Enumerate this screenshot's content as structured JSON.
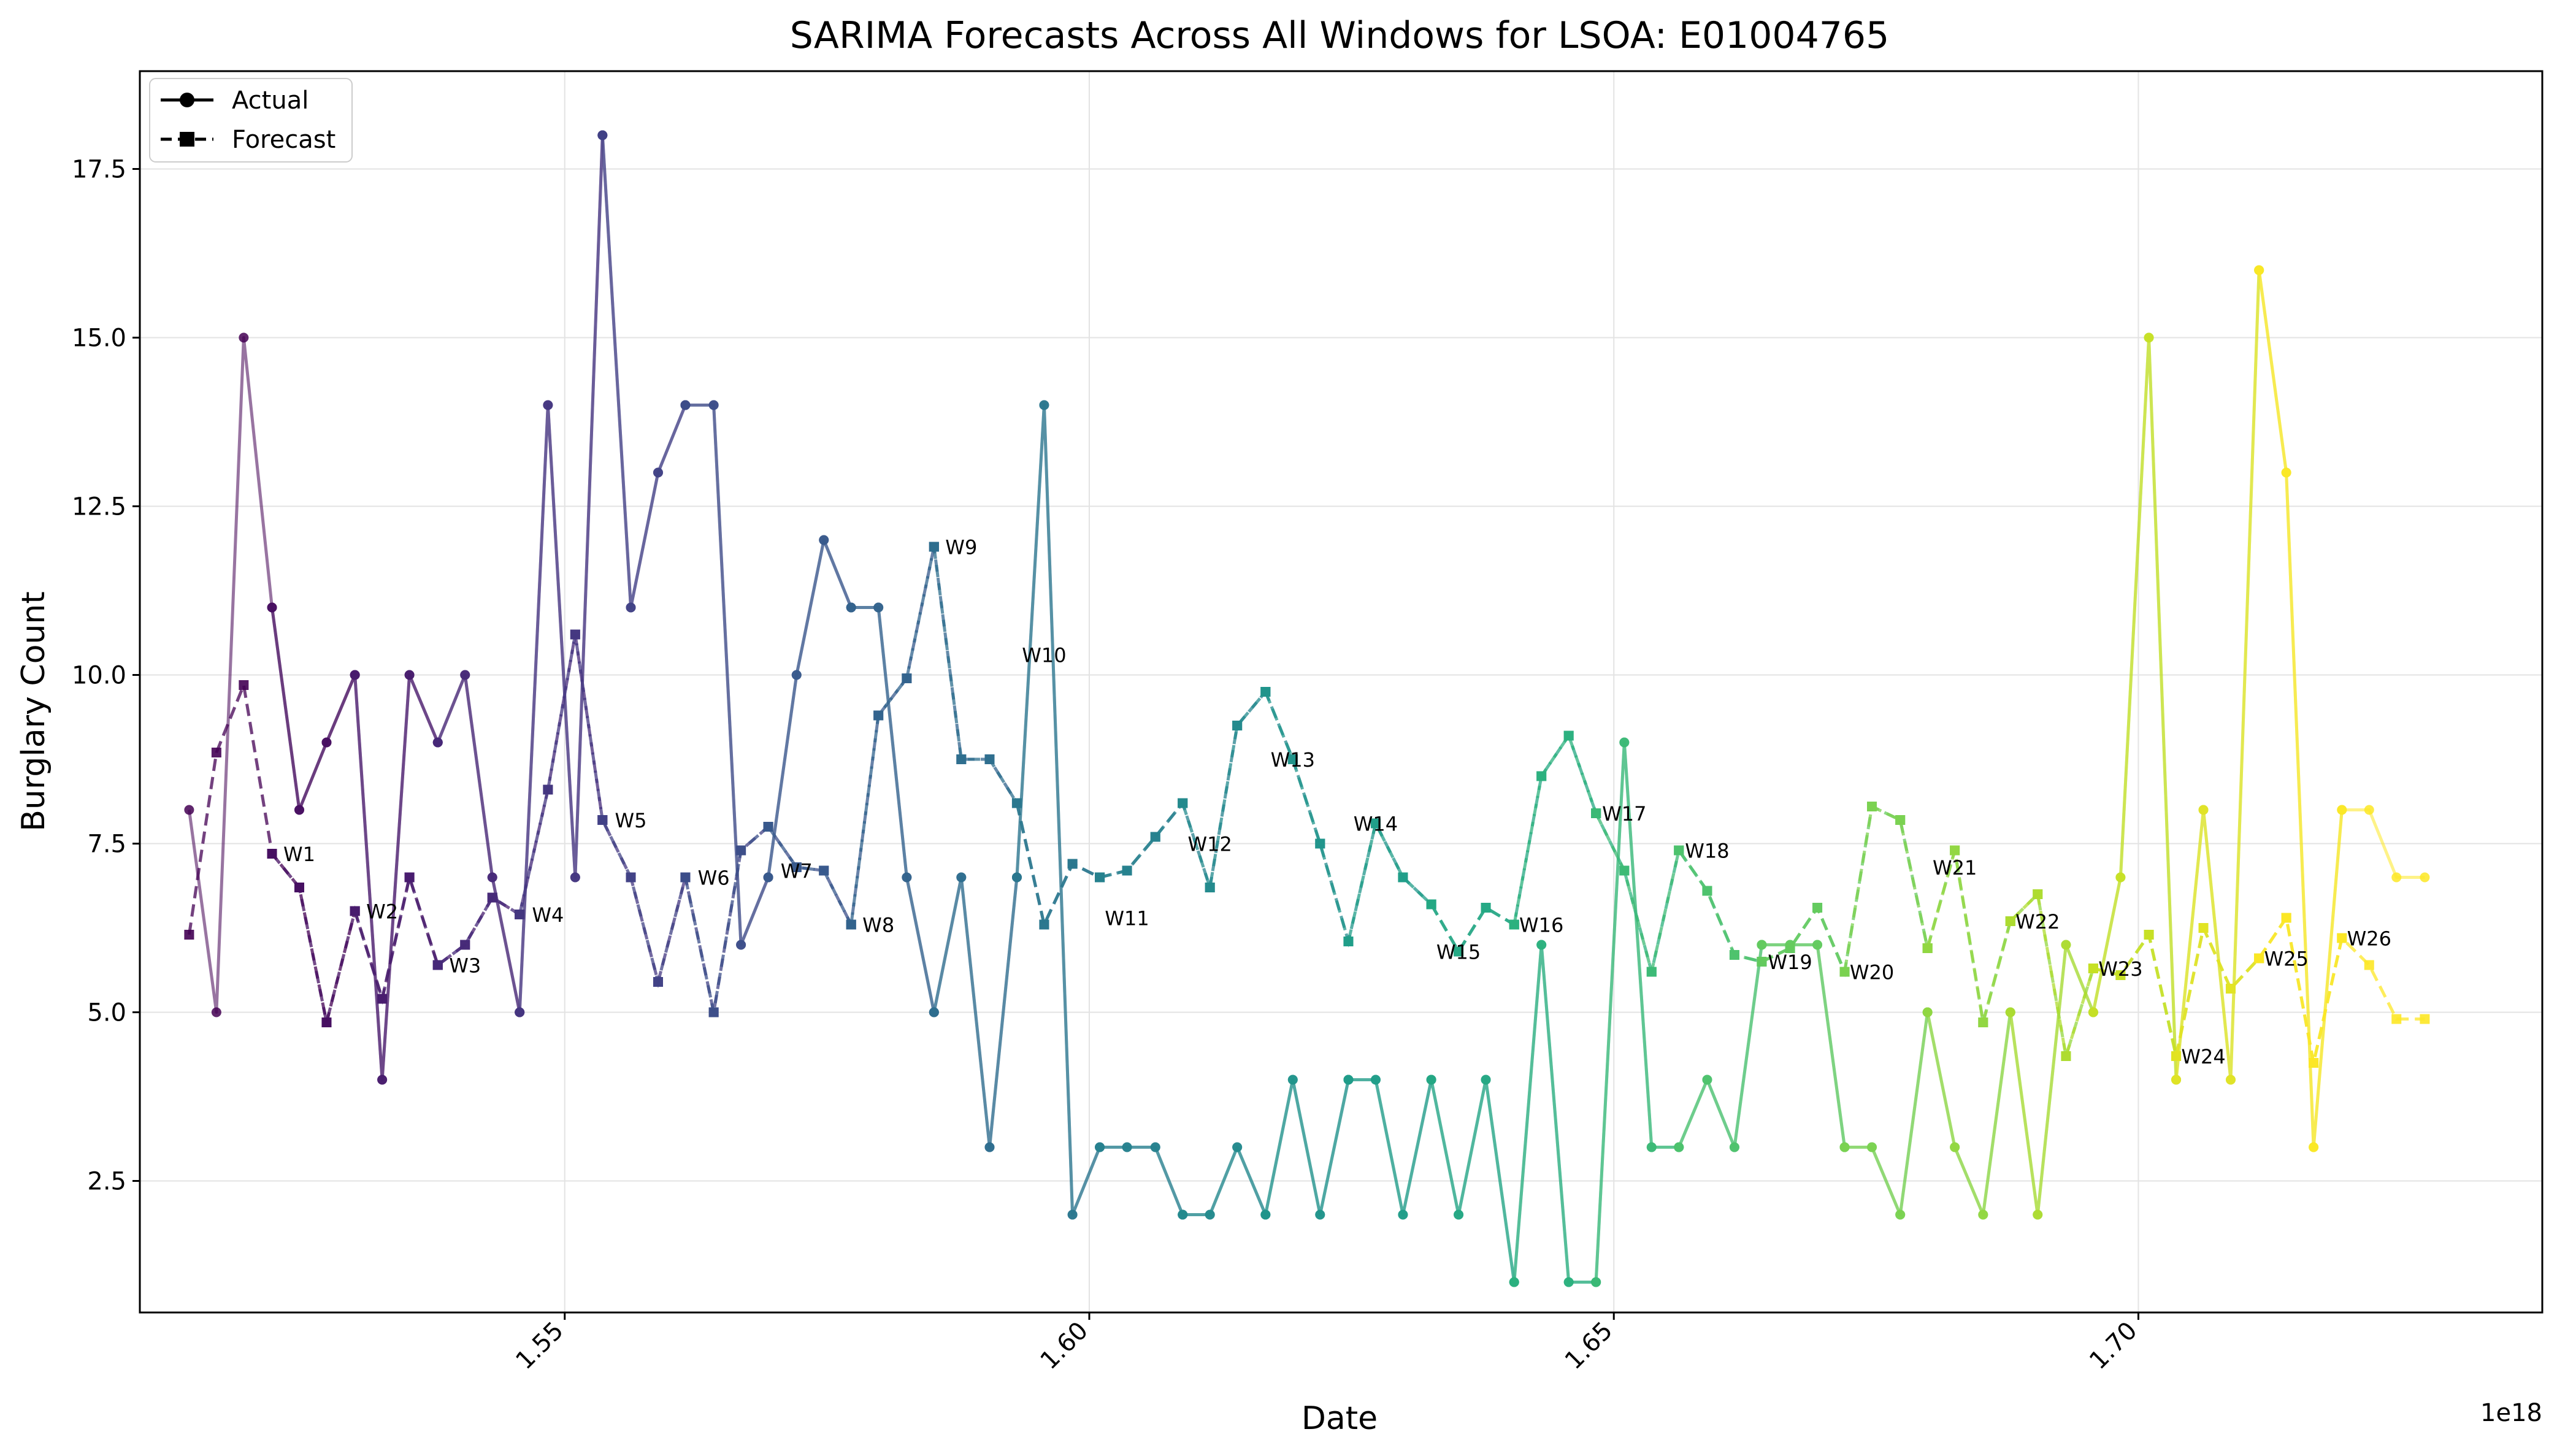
{
  "chart_data": {
    "type": "line",
    "title": "SARIMA Forecasts Across All Windows for LSOA: E01004765",
    "xlabel": "Date",
    "ylabel": "Burglary Count",
    "x_offset_label": "1e18",
    "xlim": [
      1.5095,
      1.7385
    ],
    "ylim": [
      0.55,
      18.95
    ],
    "x_ticks": [
      1.55,
      1.6,
      1.65,
      1.7
    ],
    "x_tick_labels": [
      "1.55",
      "1.60",
      "1.65",
      "1.70"
    ],
    "y_ticks": [
      2.5,
      5.0,
      7.5,
      10.0,
      12.5,
      15.0,
      17.5
    ],
    "y_tick_labels": [
      "2.5",
      "5.0",
      "7.5",
      "10.0",
      "12.5",
      "15.0",
      "17.5"
    ],
    "grid": true,
    "legend": {
      "placement": "top-left",
      "entries": [
        {
          "label": "Actual",
          "style": "solid",
          "marker": "circle"
        },
        {
          "label": "Forecast",
          "style": "dashed",
          "marker": "square"
        }
      ]
    },
    "palette": [
      "#440154",
      "#482173",
      "#433e85",
      "#38588c",
      "#2d708e",
      "#25858e",
      "#1e9b8a",
      "#2ab07f",
      "#52c569",
      "#86d549",
      "#c2df23",
      "#fde725"
    ],
    "actual": {
      "x": [
        1.5142,
        1.5168,
        1.5194,
        1.5221,
        1.5247,
        1.5273,
        1.53,
        1.5326,
        1.5352,
        1.5379,
        1.5405,
        1.5431,
        1.5457,
        1.5484,
        1.551,
        1.5536,
        1.5563,
        1.5589,
        1.5615,
        1.5642,
        1.5668,
        1.5694,
        1.5721,
        1.5747,
        1.5773,
        1.5799,
        1.5826,
        1.5852,
        1.5878,
        1.5905,
        1.5931,
        1.5957,
        1.5984,
        1.601,
        1.6036,
        1.6063,
        1.6089,
        1.6115,
        1.6141,
        1.6168,
        1.6194,
        1.622,
        1.6247,
        1.6273,
        1.6299,
        1.6326,
        1.6352,
        1.6378,
        1.6405,
        1.6431,
        1.6457,
        1.6483,
        1.651,
        1.6536,
        1.6562,
        1.6589,
        1.6615,
        1.6641,
        1.6668,
        1.6694,
        1.672,
        1.6746,
        1.6773,
        1.6799,
        1.6825,
        1.6852,
        1.6878,
        1.6904,
        1.6931,
        1.6957,
        1.6983,
        1.701,
        1.7036,
        1.7062,
        1.7088,
        1.7115,
        1.7141,
        1.7167,
        1.7194,
        1.722,
        1.7246,
        1.7273
      ],
      "y": [
        8,
        5,
        15,
        11,
        8,
        9,
        10,
        4,
        10,
        9,
        10,
        7,
        5,
        14,
        7,
        18,
        11,
        13,
        14,
        14,
        6,
        7,
        10,
        12,
        11,
        11,
        7,
        5,
        7,
        3,
        7,
        14,
        2,
        3,
        3,
        3,
        2,
        2,
        3,
        2,
        4,
        2,
        4,
        4,
        2,
        4,
        2,
        4,
        1,
        6,
        1,
        1,
        9,
        3,
        3,
        4,
        3,
        6,
        6,
        6,
        3,
        3,
        2,
        5,
        3,
        2,
        5,
        2,
        6,
        5,
        7,
        15,
        4,
        8,
        4,
        16,
        13,
        3,
        8,
        8,
        7,
        7
      ]
    },
    "forecast": {
      "x": [
        1.5142,
        1.5168,
        1.5194,
        1.5221,
        1.5247,
        1.5273,
        1.53,
        1.5326,
        1.5352,
        1.5379,
        1.5405,
        1.5431,
        1.5457,
        1.5484,
        1.551,
        1.5536,
        1.5563,
        1.5589,
        1.5615,
        1.5642,
        1.5668,
        1.5694,
        1.5721,
        1.5747,
        1.5773,
        1.5799,
        1.5826,
        1.5852,
        1.5878,
        1.5905,
        1.5931,
        1.5957,
        1.5984,
        1.601,
        1.6036,
        1.6063,
        1.6089,
        1.6115,
        1.6141,
        1.6168,
        1.6194,
        1.622,
        1.6247,
        1.6273,
        1.6299,
        1.6326,
        1.6352,
        1.6378,
        1.6405,
        1.6431,
        1.6457,
        1.6483,
        1.651,
        1.6536,
        1.6562,
        1.6589,
        1.6615,
        1.6641,
        1.6668,
        1.6694,
        1.672,
        1.6746,
        1.6773,
        1.6799,
        1.6825,
        1.6852,
        1.6878,
        1.6904,
        1.6931,
        1.6957,
        1.6983,
        1.701,
        1.7036,
        1.7062,
        1.7088,
        1.7115,
        1.7141,
        1.7167,
        1.7194,
        1.722,
        1.7246,
        1.7273
      ],
      "y": [
        6.15,
        8.85,
        9.85,
        7.35,
        6.85,
        4.85,
        6.5,
        5.2,
        7.0,
        5.7,
        6.0,
        6.7,
        6.45,
        8.3,
        10.6,
        7.85,
        7.0,
        5.45,
        7.0,
        5.0,
        7.4,
        7.75,
        7.15,
        7.1,
        6.3,
        9.4,
        9.95,
        11.9,
        8.75,
        8.75,
        8.1,
        6.3,
        7.2,
        7.0,
        7.1,
        7.6,
        8.1,
        6.85,
        9.25,
        9.75,
        8.75,
        7.5,
        6.05,
        7.8,
        7.0,
        6.6,
        5.9,
        6.55,
        6.3,
        8.5,
        9.1,
        7.95,
        7.1,
        5.6,
        7.4,
        6.8,
        5.85,
        5.75,
        5.95,
        6.55,
        5.6,
        8.05,
        7.85,
        5.95,
        7.4,
        4.85,
        6.35,
        6.75,
        4.35,
        5.65,
        5.55,
        6.15,
        4.35,
        6.25,
        5.35,
        5.8,
        6.4,
        4.25,
        6.1,
        5.7,
        4.9,
        4.9
      ]
    },
    "windows": [
      {
        "label": "W1",
        "i0": 0,
        "i1": 6
      },
      {
        "label": "W2",
        "i0": 3,
        "i1": 9
      },
      {
        "label": "W3",
        "i0": 6,
        "i1": 12
      },
      {
        "label": "W4",
        "i0": 9,
        "i1": 15
      },
      {
        "label": "W5",
        "i0": 12,
        "i1": 18
      },
      {
        "label": "W6",
        "i0": 15,
        "i1": 21
      },
      {
        "label": "W7",
        "i0": 18,
        "i1": 24
      },
      {
        "label": "W8",
        "i0": 21,
        "i1": 27
      },
      {
        "label": "W9",
        "i0": 24,
        "i1": 30
      },
      {
        "label": "W10",
        "i0": 27,
        "i1": 33
      },
      {
        "label": "W11",
        "i0": 30,
        "i1": 36
      },
      {
        "label": "W12",
        "i0": 33,
        "i1": 39
      },
      {
        "label": "W13",
        "i0": 36,
        "i1": 42
      },
      {
        "label": "W14",
        "i0": 39,
        "i1": 45
      },
      {
        "label": "W15",
        "i0": 42,
        "i1": 48
      },
      {
        "label": "W16",
        "i0": 45,
        "i1": 51
      },
      {
        "label": "W17",
        "i0": 48,
        "i1": 54
      },
      {
        "label": "W18",
        "i0": 51,
        "i1": 57
      },
      {
        "label": "W19",
        "i0": 54,
        "i1": 60
      },
      {
        "label": "W20",
        "i0": 57,
        "i1": 63
      },
      {
        "label": "W21",
        "i0": 60,
        "i1": 66
      },
      {
        "label": "W22",
        "i0": 63,
        "i1": 69
      },
      {
        "label": "W23",
        "i0": 66,
        "i1": 72
      },
      {
        "label": "W24",
        "i0": 69,
        "i1": 75
      },
      {
        "label": "W25",
        "i0": 72,
        "i1": 78
      },
      {
        "label": "W26",
        "i0": 75,
        "i1": 81
      }
    ],
    "window_annotations": [
      {
        "label": "W1",
        "x": 1.5247,
        "y": 7.35
      },
      {
        "label": "W2",
        "x": 1.5326,
        "y": 6.5
      },
      {
        "label": "W3",
        "x": 1.5405,
        "y": 5.7
      },
      {
        "label": "W4",
        "x": 1.5484,
        "y": 6.45
      },
      {
        "label": "W5",
        "x": 1.5563,
        "y": 7.85
      },
      {
        "label": "W6",
        "x": 1.5642,
        "y": 7.0
      },
      {
        "label": "W7",
        "x": 1.5721,
        "y": 7.1
      },
      {
        "label": "W8",
        "x": 1.5799,
        "y": 6.3
      },
      {
        "label": "W9",
        "x": 1.5878,
        "y": 11.9
      },
      {
        "label": "W10",
        "x": 1.5957,
        "y": 10.3
      },
      {
        "label": "W11",
        "x": 1.6036,
        "y": 6.4
      },
      {
        "label": "W12",
        "x": 1.6115,
        "y": 7.5
      },
      {
        "label": "W13",
        "x": 1.6194,
        "y": 8.75
      },
      {
        "label": "W14",
        "x": 1.6273,
        "y": 7.8
      },
      {
        "label": "W15",
        "x": 1.6352,
        "y": 5.9
      },
      {
        "label": "W16",
        "x": 1.6431,
        "y": 6.3
      },
      {
        "label": "W17",
        "x": 1.651,
        "y": 7.95
      },
      {
        "label": "W18",
        "x": 1.6589,
        "y": 7.4
      },
      {
        "label": "W19",
        "x": 1.6668,
        "y": 5.75
      },
      {
        "label": "W20",
        "x": 1.6746,
        "y": 5.6
      },
      {
        "label": "W21",
        "x": 1.6825,
        "y": 7.15
      },
      {
        "label": "W22",
        "x": 1.6904,
        "y": 6.35
      },
      {
        "label": "W23",
        "x": 1.6983,
        "y": 5.65
      },
      {
        "label": "W24",
        "x": 1.7062,
        "y": 4.35
      },
      {
        "label": "W25",
        "x": 1.7141,
        "y": 5.8
      },
      {
        "label": "W26",
        "x": 1.722,
        "y": 6.1
      }
    ]
  }
}
